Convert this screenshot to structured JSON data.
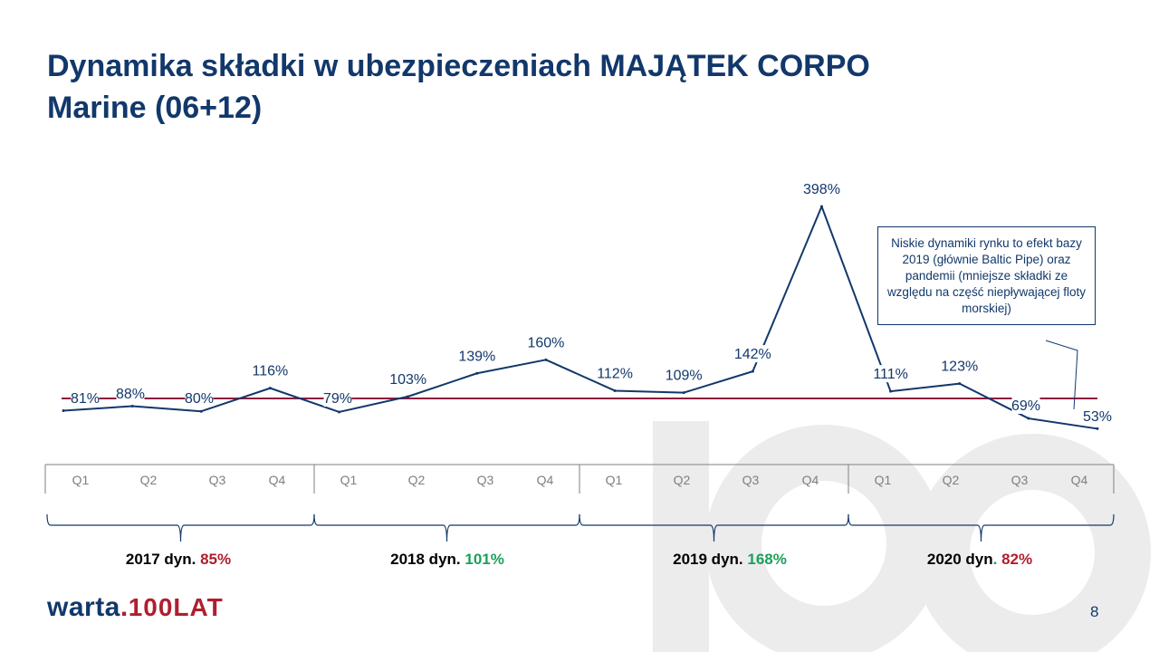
{
  "title": {
    "line1": "Dynamika składki w ubezpieczeniach MAJĄTEK CORPO",
    "line2": "Marine (06+12)"
  },
  "chart_data": {
    "type": "line",
    "x": [
      "Q1",
      "Q2",
      "Q3",
      "Q4",
      "Q1",
      "Q2",
      "Q3",
      "Q4",
      "Q1",
      "Q2",
      "Q3",
      "Q4",
      "Q1",
      "Q2",
      "Q3",
      "Q4"
    ],
    "years": [
      "2017",
      "2017",
      "2017",
      "2017",
      "2018",
      "2018",
      "2018",
      "2018",
      "2019",
      "2019",
      "2019",
      "2019",
      "2020",
      "2020",
      "2020",
      "2020"
    ],
    "values": [
      81,
      88,
      80,
      116,
      79,
      103,
      139,
      160,
      112,
      109,
      142,
      398,
      111,
      123,
      69,
      53
    ],
    "value_labels": [
      "81%",
      "88%",
      "80%",
      "116%",
      "79%",
      "103%",
      "139%",
      "160%",
      "112%",
      "109%",
      "142%",
      "398%",
      "111%",
      "123%",
      "69%",
      "53%"
    ],
    "reference_line": 100,
    "ylim": [
      0,
      420
    ],
    "colors": {
      "line": "#12386b",
      "reference": "#8b1a3c",
      "axis": "#7f7f7f"
    }
  },
  "year_groups": [
    {
      "label": "2017 dyn.",
      "value": "85%",
      "color": "#b01e2f"
    },
    {
      "label": "2018 dyn.",
      "value": "101%",
      "color": "#1ca05a"
    },
    {
      "label": "2019 dyn.",
      "value": "168%",
      "color": "#1ca05a"
    },
    {
      "label": "2020 dyn",
      "sep": ".",
      "value": "82%",
      "color": "#b01e2f"
    }
  ],
  "note": "Niskie dynamiki rynku  to efekt bazy 2019 (głównie Baltic Pipe) oraz pandemii (mniejsze składki ze względu na część niepływającej floty morskiej)",
  "logo": {
    "main": "warta",
    "dot": ".",
    "sub": "100LAT"
  },
  "page_number": "8"
}
